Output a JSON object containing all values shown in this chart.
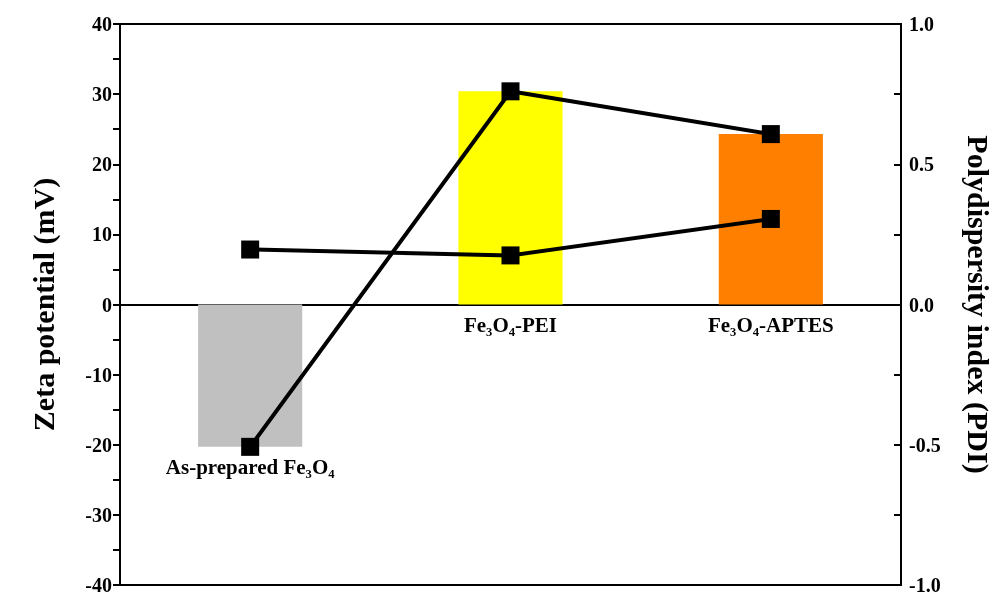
{
  "chart_data": {
    "type": "bar",
    "ylabel": "Zeta potential (mV)",
    "y2label": "Polydispersity index (PDI)",
    "categories": [
      "As-prepared Fe₃O₄",
      "Fe₃O₄-PEI",
      "Fe₃O₄-APTES"
    ],
    "series": [
      {
        "values": [
          -20.3,
          30.4,
          24.3
        ],
        "colors": [
          "#c0c0c0",
          "#ffff00",
          "#ff8000"
        ]
      },
      {
        "type": "line",
        "values": [
          -20.3,
          30.4,
          24.3
        ],
        "color": "#000000"
      },
      {
        "type": "line",
        "axis": "y2",
        "values": [
          0.196,
          0.175,
          0.305
        ],
        "color": "#000000"
      }
    ],
    "ylim": [
      -40,
      40
    ],
    "yticks": [
      -40,
      -30,
      -20,
      -10,
      0,
      10,
      20,
      30,
      40
    ],
    "y2lim": [
      -1.0,
      1.0
    ],
    "y2ticks": [
      {
        "value": -1.0,
        "label": "-1.0"
      },
      {
        "value": -0.5,
        "label": "-0.5"
      },
      {
        "value": 0,
        "label": "0.0"
      },
      {
        "value": 0.5,
        "label": "0.5"
      },
      {
        "value": 1.0,
        "label": "1.0"
      }
    ],
    "marker": "square",
    "line_style": "solid",
    "grid": false
  }
}
